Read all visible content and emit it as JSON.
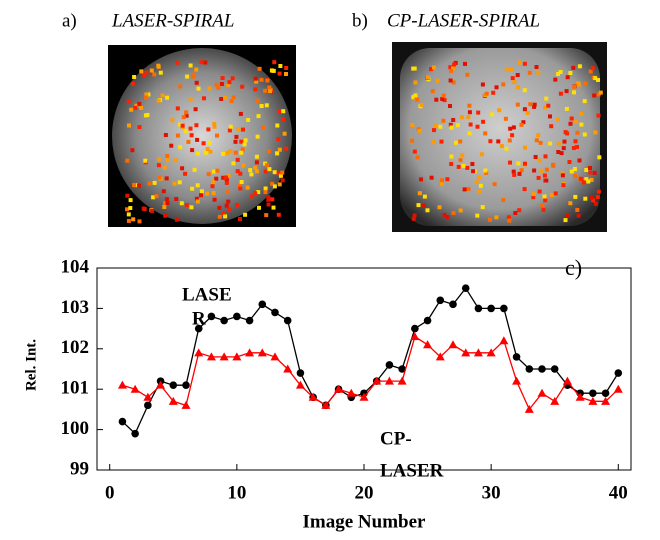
{
  "panels": [
    {
      "label": "a)",
      "title": "LASER-SPIRAL"
    },
    {
      "label": "b)",
      "title": "CP-LASER-SPIRAL"
    }
  ],
  "chart_data": {
    "type": "line",
    "xlabel": "Image Number",
    "ylabel": "Rel. Int.",
    "annotations": [
      "LASE",
      "R",
      "CP-",
      "LASER",
      "c)"
    ],
    "x": [
      1,
      2,
      3,
      4,
      5,
      6,
      7,
      8,
      9,
      10,
      11,
      12,
      13,
      14,
      15,
      16,
      17,
      18,
      19,
      20,
      21,
      22,
      23,
      24,
      25,
      26,
      27,
      28,
      29,
      30,
      31,
      32,
      33,
      34,
      35,
      36,
      37,
      38,
      39,
      40
    ],
    "series": [
      {
        "color": "#000000",
        "marker": "circle",
        "values": [
          100.2,
          99.9,
          100.6,
          101.2,
          101.1,
          101.1,
          102.5,
          102.8,
          102.7,
          102.8,
          102.7,
          103.1,
          102.9,
          102.7,
          101.4,
          100.8,
          100.6,
          101.0,
          100.8,
          100.9,
          101.2,
          101.6,
          101.5,
          102.5,
          102.7,
          103.2,
          103.1,
          103.5,
          103.0,
          103.0,
          103.0,
          101.8,
          101.5,
          101.5,
          101.5,
          101.1,
          100.9,
          100.9,
          100.9,
          101.4
        ]
      },
      {
        "color": "#ff0000",
        "marker": "triangle",
        "values": [
          101.1,
          101.0,
          100.8,
          101.1,
          100.7,
          100.6,
          101.9,
          101.8,
          101.8,
          101.8,
          101.9,
          101.9,
          101.8,
          101.5,
          101.1,
          100.8,
          100.6,
          101.0,
          100.9,
          100.8,
          101.2,
          101.2,
          101.2,
          102.3,
          102.1,
          101.8,
          102.1,
          101.9,
          101.9,
          101.9,
          102.2,
          101.2,
          100.5,
          100.9,
          100.7,
          101.2,
          100.8,
          100.7,
          100.7,
          101.0
        ]
      }
    ],
    "xlim": [
      -1,
      41
    ],
    "xticks": [
      0,
      10,
      20,
      30,
      40
    ],
    "ylim": [
      99,
      104
    ],
    "yticks": [
      99,
      100,
      101,
      102,
      103,
      104
    ]
  }
}
